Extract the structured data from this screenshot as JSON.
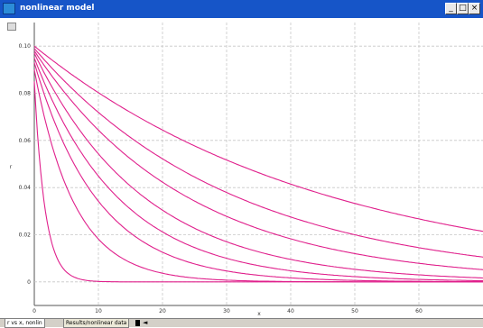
{
  "window": {
    "title": "nonlinear model",
    "minimize_glyph": "_",
    "maximize_glyph": "□",
    "close_glyph": "×"
  },
  "chart_data": {
    "type": "line",
    "title": "",
    "xlabel": "x",
    "ylabel": "r",
    "xlim": [
      0,
      70
    ],
    "ylim": [
      -0.01,
      0.11
    ],
    "x_ticks": [
      0,
      10,
      20,
      30,
      40,
      50,
      60
    ],
    "x_tick_labels": [
      "0",
      "10",
      "20",
      "30",
      "40",
      "50",
      "60"
    ],
    "y_ticks": [
      0,
      0.02,
      0.04,
      0.06,
      0.08,
      0.1
    ],
    "y_tick_labels": [
      "0",
      "0.02",
      "0.04",
      "0.06",
      "0.08",
      "0.10"
    ],
    "grid": true,
    "line_color": "#e0208c",
    "series": [
      {
        "y0": 0.085,
        "decay": 0.6
      },
      {
        "y0": 0.09,
        "decay": 0.16
      },
      {
        "y0": 0.093,
        "decay": 0.1
      },
      {
        "y0": 0.095,
        "decay": 0.075
      },
      {
        "y0": 0.097,
        "decay": 0.058
      },
      {
        "y0": 0.098,
        "decay": 0.042
      },
      {
        "y0": 0.099,
        "decay": 0.032
      },
      {
        "y0": 0.1,
        "decay": 0.022
      }
    ]
  },
  "statusbar": {
    "tab1": "r vs x, nonlin",
    "tab2": "Results/nonlinear data",
    "arrow": "◄"
  }
}
